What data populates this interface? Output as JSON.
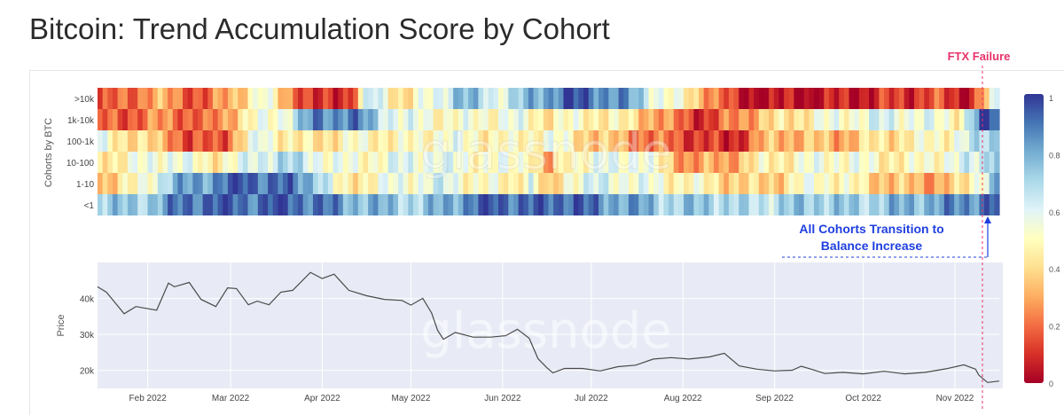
{
  "title": "Bitcoin: Trend Accumulation Score by Cohort",
  "chart_data": [
    {
      "type": "heatmap",
      "ylabel": "Cohorts by BTC",
      "rows": [
        ">10k",
        "1k-10k",
        "100-1k",
        "10-100",
        "1-10",
        "<1"
      ],
      "x_range": [
        "2022-01-15",
        "2022-11-16"
      ],
      "colorscale": {
        "min": 0,
        "max": 1,
        "ticks": [
          0,
          0.2,
          0.4,
          0.6,
          0.8,
          1
        ],
        "low_color": "#a50026",
        "mid_color": "#ffffbf",
        "high_color": "#313695"
      },
      "rows_data": [
        [
          [
            0,
            0.1
          ],
          [
            0.06,
            0.3
          ],
          [
            0.12,
            0.15
          ],
          [
            0.18,
            0.55
          ],
          [
            0.24,
            0.05
          ],
          [
            0.28,
            0.15
          ],
          [
            0.3,
            0.65
          ],
          [
            0.34,
            0.4
          ],
          [
            0.38,
            0.6
          ],
          [
            0.4,
            0.8
          ],
          [
            0.44,
            0.6
          ],
          [
            0.48,
            0.75
          ],
          [
            0.52,
            0.95
          ],
          [
            0.58,
            0.85
          ],
          [
            0.62,
            0.6
          ],
          [
            0.68,
            0.3
          ],
          [
            0.71,
            0.05
          ],
          [
            0.78,
            0.03
          ],
          [
            0.86,
            0.08
          ],
          [
            0.93,
            0.15
          ],
          [
            0.97,
            0.05
          ],
          [
            1,
            0.55
          ]
        ],
        [
          [
            0,
            0.15
          ],
          [
            0.04,
            0.2
          ],
          [
            0.08,
            0.25
          ],
          [
            0.12,
            0.15
          ],
          [
            0.16,
            0.45
          ],
          [
            0.2,
            0.55
          ],
          [
            0.24,
            0.85
          ],
          [
            0.28,
            0.9
          ],
          [
            0.31,
            0.7
          ],
          [
            0.34,
            0.55
          ],
          [
            0.4,
            0.5
          ],
          [
            0.46,
            0.55
          ],
          [
            0.5,
            0.45
          ],
          [
            0.54,
            0.5
          ],
          [
            0.6,
            0.4
          ],
          [
            0.64,
            0.2
          ],
          [
            0.68,
            0.1
          ],
          [
            0.72,
            0.3
          ],
          [
            0.76,
            0.4
          ],
          [
            0.8,
            0.5
          ],
          [
            0.84,
            0.55
          ],
          [
            0.88,
            0.6
          ],
          [
            0.92,
            0.55
          ],
          [
            0.96,
            0.5
          ],
          [
            0.985,
            0.95
          ],
          [
            1,
            0.95
          ]
        ],
        [
          [
            0,
            0.55
          ],
          [
            0.04,
            0.4
          ],
          [
            0.08,
            0.3
          ],
          [
            0.1,
            0.1
          ],
          [
            0.14,
            0.2
          ],
          [
            0.18,
            0.6
          ],
          [
            0.22,
            0.4
          ],
          [
            0.26,
            0.45
          ],
          [
            0.3,
            0.5
          ],
          [
            0.34,
            0.45
          ],
          [
            0.38,
            0.55
          ],
          [
            0.42,
            0.5
          ],
          [
            0.46,
            0.45
          ],
          [
            0.5,
            0.55
          ],
          [
            0.54,
            0.4
          ],
          [
            0.58,
            0.3
          ],
          [
            0.62,
            0.2
          ],
          [
            0.66,
            0.15
          ],
          [
            0.7,
            0.05
          ],
          [
            0.74,
            0.3
          ],
          [
            0.78,
            0.35
          ],
          [
            0.82,
            0.3
          ],
          [
            0.86,
            0.4
          ],
          [
            0.9,
            0.45
          ],
          [
            0.94,
            0.5
          ],
          [
            0.97,
            0.6
          ],
          [
            1,
            0.75
          ]
        ],
        [
          [
            0,
            0.45
          ],
          [
            0.04,
            0.5
          ],
          [
            0.08,
            0.6
          ],
          [
            0.12,
            0.45
          ],
          [
            0.16,
            0.55
          ],
          [
            0.2,
            0.7
          ],
          [
            0.24,
            0.6
          ],
          [
            0.28,
            0.5
          ],
          [
            0.32,
            0.55
          ],
          [
            0.36,
            0.6
          ],
          [
            0.4,
            0.55
          ],
          [
            0.44,
            0.5
          ],
          [
            0.48,
            0.55
          ],
          [
            0.5,
            0.2
          ],
          [
            0.52,
            0.5
          ],
          [
            0.56,
            0.55
          ],
          [
            0.6,
            0.6
          ],
          [
            0.63,
            0.4
          ],
          [
            0.66,
            0.25
          ],
          [
            0.7,
            0.3
          ],
          [
            0.74,
            0.45
          ],
          [
            0.78,
            0.5
          ],
          [
            0.82,
            0.55
          ],
          [
            0.86,
            0.5
          ],
          [
            0.9,
            0.45
          ],
          [
            0.94,
            0.55
          ],
          [
            0.98,
            0.6
          ],
          [
            1,
            0.85
          ]
        ],
        [
          [
            0,
            0.35
          ],
          [
            0.04,
            0.45
          ],
          [
            0.08,
            0.75
          ],
          [
            0.12,
            0.85
          ],
          [
            0.16,
            0.95
          ],
          [
            0.2,
            0.9
          ],
          [
            0.24,
            0.8
          ],
          [
            0.27,
            0.4
          ],
          [
            0.3,
            0.5
          ],
          [
            0.34,
            0.55
          ],
          [
            0.38,
            0.6
          ],
          [
            0.42,
            0.5
          ],
          [
            0.46,
            0.45
          ],
          [
            0.48,
            0.6
          ],
          [
            0.5,
            0.25
          ],
          [
            0.52,
            0.55
          ],
          [
            0.56,
            0.6
          ],
          [
            0.6,
            0.55
          ],
          [
            0.64,
            0.5
          ],
          [
            0.68,
            0.45
          ],
          [
            0.72,
            0.35
          ],
          [
            0.76,
            0.4
          ],
          [
            0.8,
            0.55
          ],
          [
            0.84,
            0.45
          ],
          [
            0.88,
            0.35
          ],
          [
            0.92,
            0.3
          ],
          [
            0.96,
            0.35
          ],
          [
            1,
            0.8
          ]
        ],
        [
          [
            0,
            0.75
          ],
          [
            0.04,
            0.7
          ],
          [
            0.08,
            0.85
          ],
          [
            0.12,
            0.95
          ],
          [
            0.16,
            0.9
          ],
          [
            0.2,
            0.95
          ],
          [
            0.24,
            0.9
          ],
          [
            0.28,
            0.8
          ],
          [
            0.32,
            0.75
          ],
          [
            0.36,
            0.7
          ],
          [
            0.4,
            0.85
          ],
          [
            0.44,
            0.95
          ],
          [
            0.48,
            0.9
          ],
          [
            0.52,
            0.95
          ],
          [
            0.56,
            0.85
          ],
          [
            0.6,
            0.8
          ],
          [
            0.64,
            0.7
          ],
          [
            0.68,
            0.75
          ],
          [
            0.72,
            0.65
          ],
          [
            0.76,
            0.7
          ],
          [
            0.8,
            0.75
          ],
          [
            0.84,
            0.7
          ],
          [
            0.88,
            0.75
          ],
          [
            0.92,
            0.8
          ],
          [
            0.96,
            0.85
          ],
          [
            1,
            0.95
          ]
        ]
      ]
    },
    {
      "type": "line",
      "ylabel": "Price",
      "yticks": [
        "40k",
        "30k",
        "20k"
      ],
      "xticks": [
        "Feb 2022",
        "Mar 2022",
        "Apr 2022",
        "May 2022",
        "Jun 2022",
        "Jul 2022",
        "Aug 2022",
        "Sep 2022",
        "Oct 2022",
        "Nov 2022"
      ],
      "ylim": [
        15000,
        50000
      ],
      "series": [
        {
          "x": [
            "2022-01-15",
            "2022-01-18",
            "2022-01-21",
            "2022-01-24",
            "2022-01-28",
            "2022-02-04",
            "2022-02-08",
            "2022-02-10",
            "2022-02-15",
            "2022-02-19",
            "2022-02-24",
            "2022-02-28",
            "2022-03-03",
            "2022-03-07",
            "2022-03-10",
            "2022-03-14",
            "2022-03-18",
            "2022-03-22",
            "2022-03-28",
            "2022-04-01",
            "2022-04-05",
            "2022-04-10",
            "2022-04-16",
            "2022-04-22",
            "2022-04-28",
            "2022-05-01",
            "2022-05-05",
            "2022-05-08",
            "2022-05-10",
            "2022-05-12",
            "2022-05-16",
            "2022-05-22",
            "2022-05-28",
            "2022-06-02",
            "2022-06-06",
            "2022-06-10",
            "2022-06-13",
            "2022-06-16",
            "2022-06-18",
            "2022-06-22",
            "2022-06-28",
            "2022-07-04",
            "2022-07-10",
            "2022-07-16",
            "2022-07-22",
            "2022-07-28",
            "2022-08-03",
            "2022-08-10",
            "2022-08-15",
            "2022-08-20",
            "2022-08-26",
            "2022-09-01",
            "2022-09-07",
            "2022-09-10",
            "2022-09-13",
            "2022-09-18",
            "2022-09-24",
            "2022-10-01",
            "2022-10-08",
            "2022-10-15",
            "2022-10-22",
            "2022-10-29",
            "2022-11-04",
            "2022-11-08",
            "2022-11-09",
            "2022-11-12",
            "2022-11-16"
          ],
          "y": [
            43000,
            42000,
            38500,
            36000,
            37500,
            37000,
            44000,
            43500,
            44200,
            40000,
            37500,
            43200,
            42500,
            38500,
            39000,
            38500,
            41500,
            42500,
            47000,
            45800,
            46500,
            42500,
            40500,
            40000,
            39200,
            38400,
            39800,
            36200,
            30900,
            28900,
            30300,
            29500,
            29000,
            29900,
            31200,
            29200,
            23000,
            21000,
            19100,
            20800,
            20300,
            20100,
            20800,
            21700,
            22900,
            23800,
            22900,
            24000,
            24500,
            21500,
            20100,
            20100,
            19800,
            21400,
            20200,
            19400,
            19200,
            19300,
            19500,
            19300,
            19200,
            20700,
            21300,
            20600,
            18500,
            16900,
            16800
          ]
        }
      ]
    }
  ],
  "annotations": {
    "ftx": "FTX Failure",
    "cohorts_line1": "All Cohorts Transition to",
    "cohorts_line2": "Balance Increase",
    "watermark": "glassnode"
  },
  "colors": {
    "ftx": "#e8336a",
    "annotation_blue": "#1f3fe0",
    "price_line": "#4a4a4a",
    "price_bg": "#e8ebf5"
  }
}
